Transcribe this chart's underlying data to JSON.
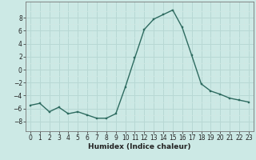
{
  "x": [
    0,
    1,
    2,
    3,
    4,
    5,
    6,
    7,
    8,
    9,
    10,
    11,
    12,
    13,
    14,
    15,
    16,
    17,
    18,
    19,
    20,
    21,
    22,
    23
  ],
  "y": [
    -5.5,
    -5.2,
    -6.5,
    -5.8,
    -6.8,
    -6.5,
    -7.0,
    -7.5,
    -7.5,
    -6.8,
    -2.7,
    1.8,
    6.2,
    7.8,
    8.5,
    9.2,
    6.5,
    2.2,
    -2.2,
    -3.3,
    -3.8,
    -4.4,
    -4.7,
    -5.0
  ],
  "line_color": "#2e6b60",
  "marker": "s",
  "markersize": 2.0,
  "linewidth": 1.0,
  "bg_color": "#cce9e5",
  "grid_color_major": "#b8d8d4",
  "grid_color_minor": "#d0e8e4",
  "xlabel": "Humidex (Indice chaleur)",
  "xlabel_fontsize": 6.5,
  "ylim": [
    -9.5,
    10.5
  ],
  "xlim": [
    -0.5,
    23.5
  ],
  "yticks": [
    -8,
    -6,
    -4,
    -2,
    0,
    2,
    4,
    6,
    8
  ],
  "xticks": [
    0,
    1,
    2,
    3,
    4,
    5,
    6,
    7,
    8,
    9,
    10,
    11,
    12,
    13,
    14,
    15,
    16,
    17,
    18,
    19,
    20,
    21,
    22,
    23
  ],
  "tick_fontsize": 5.5,
  "tick_color": "#222222"
}
